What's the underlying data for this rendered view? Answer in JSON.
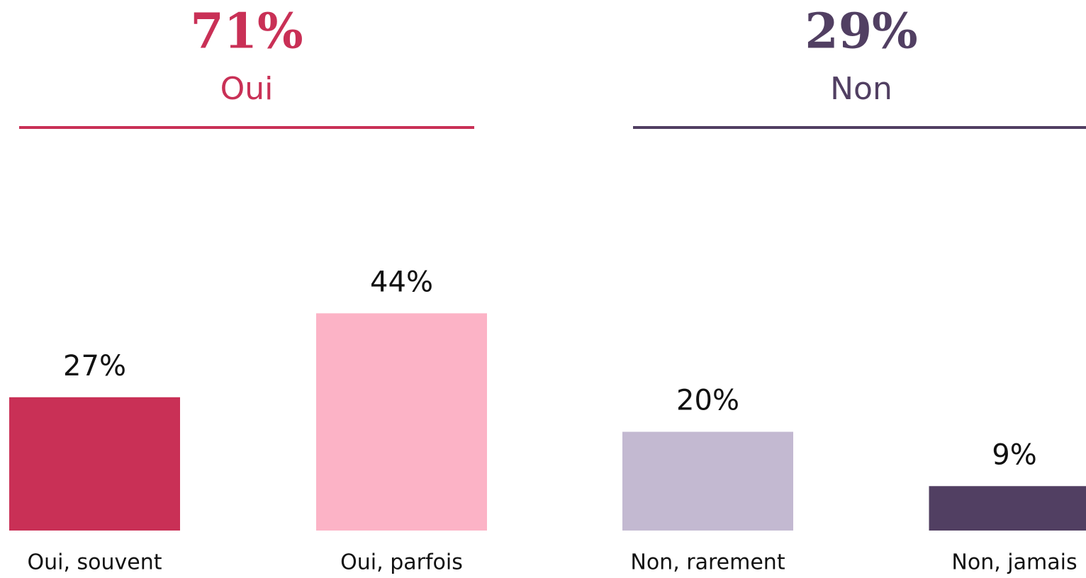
{
  "chart_data": {
    "type": "bar",
    "categories": [
      "Oui, souvent",
      "Oui, parfois",
      "Non, rarement",
      "Non, jamais"
    ],
    "values": [
      27,
      44,
      20,
      9
    ],
    "value_labels": [
      "27%",
      "44%",
      "20%",
      "9%"
    ],
    "colors": [
      "#c93056",
      "#fcb3c6",
      "#c3b9d1",
      "#513f62"
    ],
    "ylim": [
      0,
      100
    ],
    "groups": [
      {
        "value": 71,
        "label": "71%",
        "name": "Oui",
        "color": "#c93056"
      },
      {
        "value": 29,
        "label": "29%",
        "name": "Non",
        "color": "#513f62"
      }
    ]
  }
}
